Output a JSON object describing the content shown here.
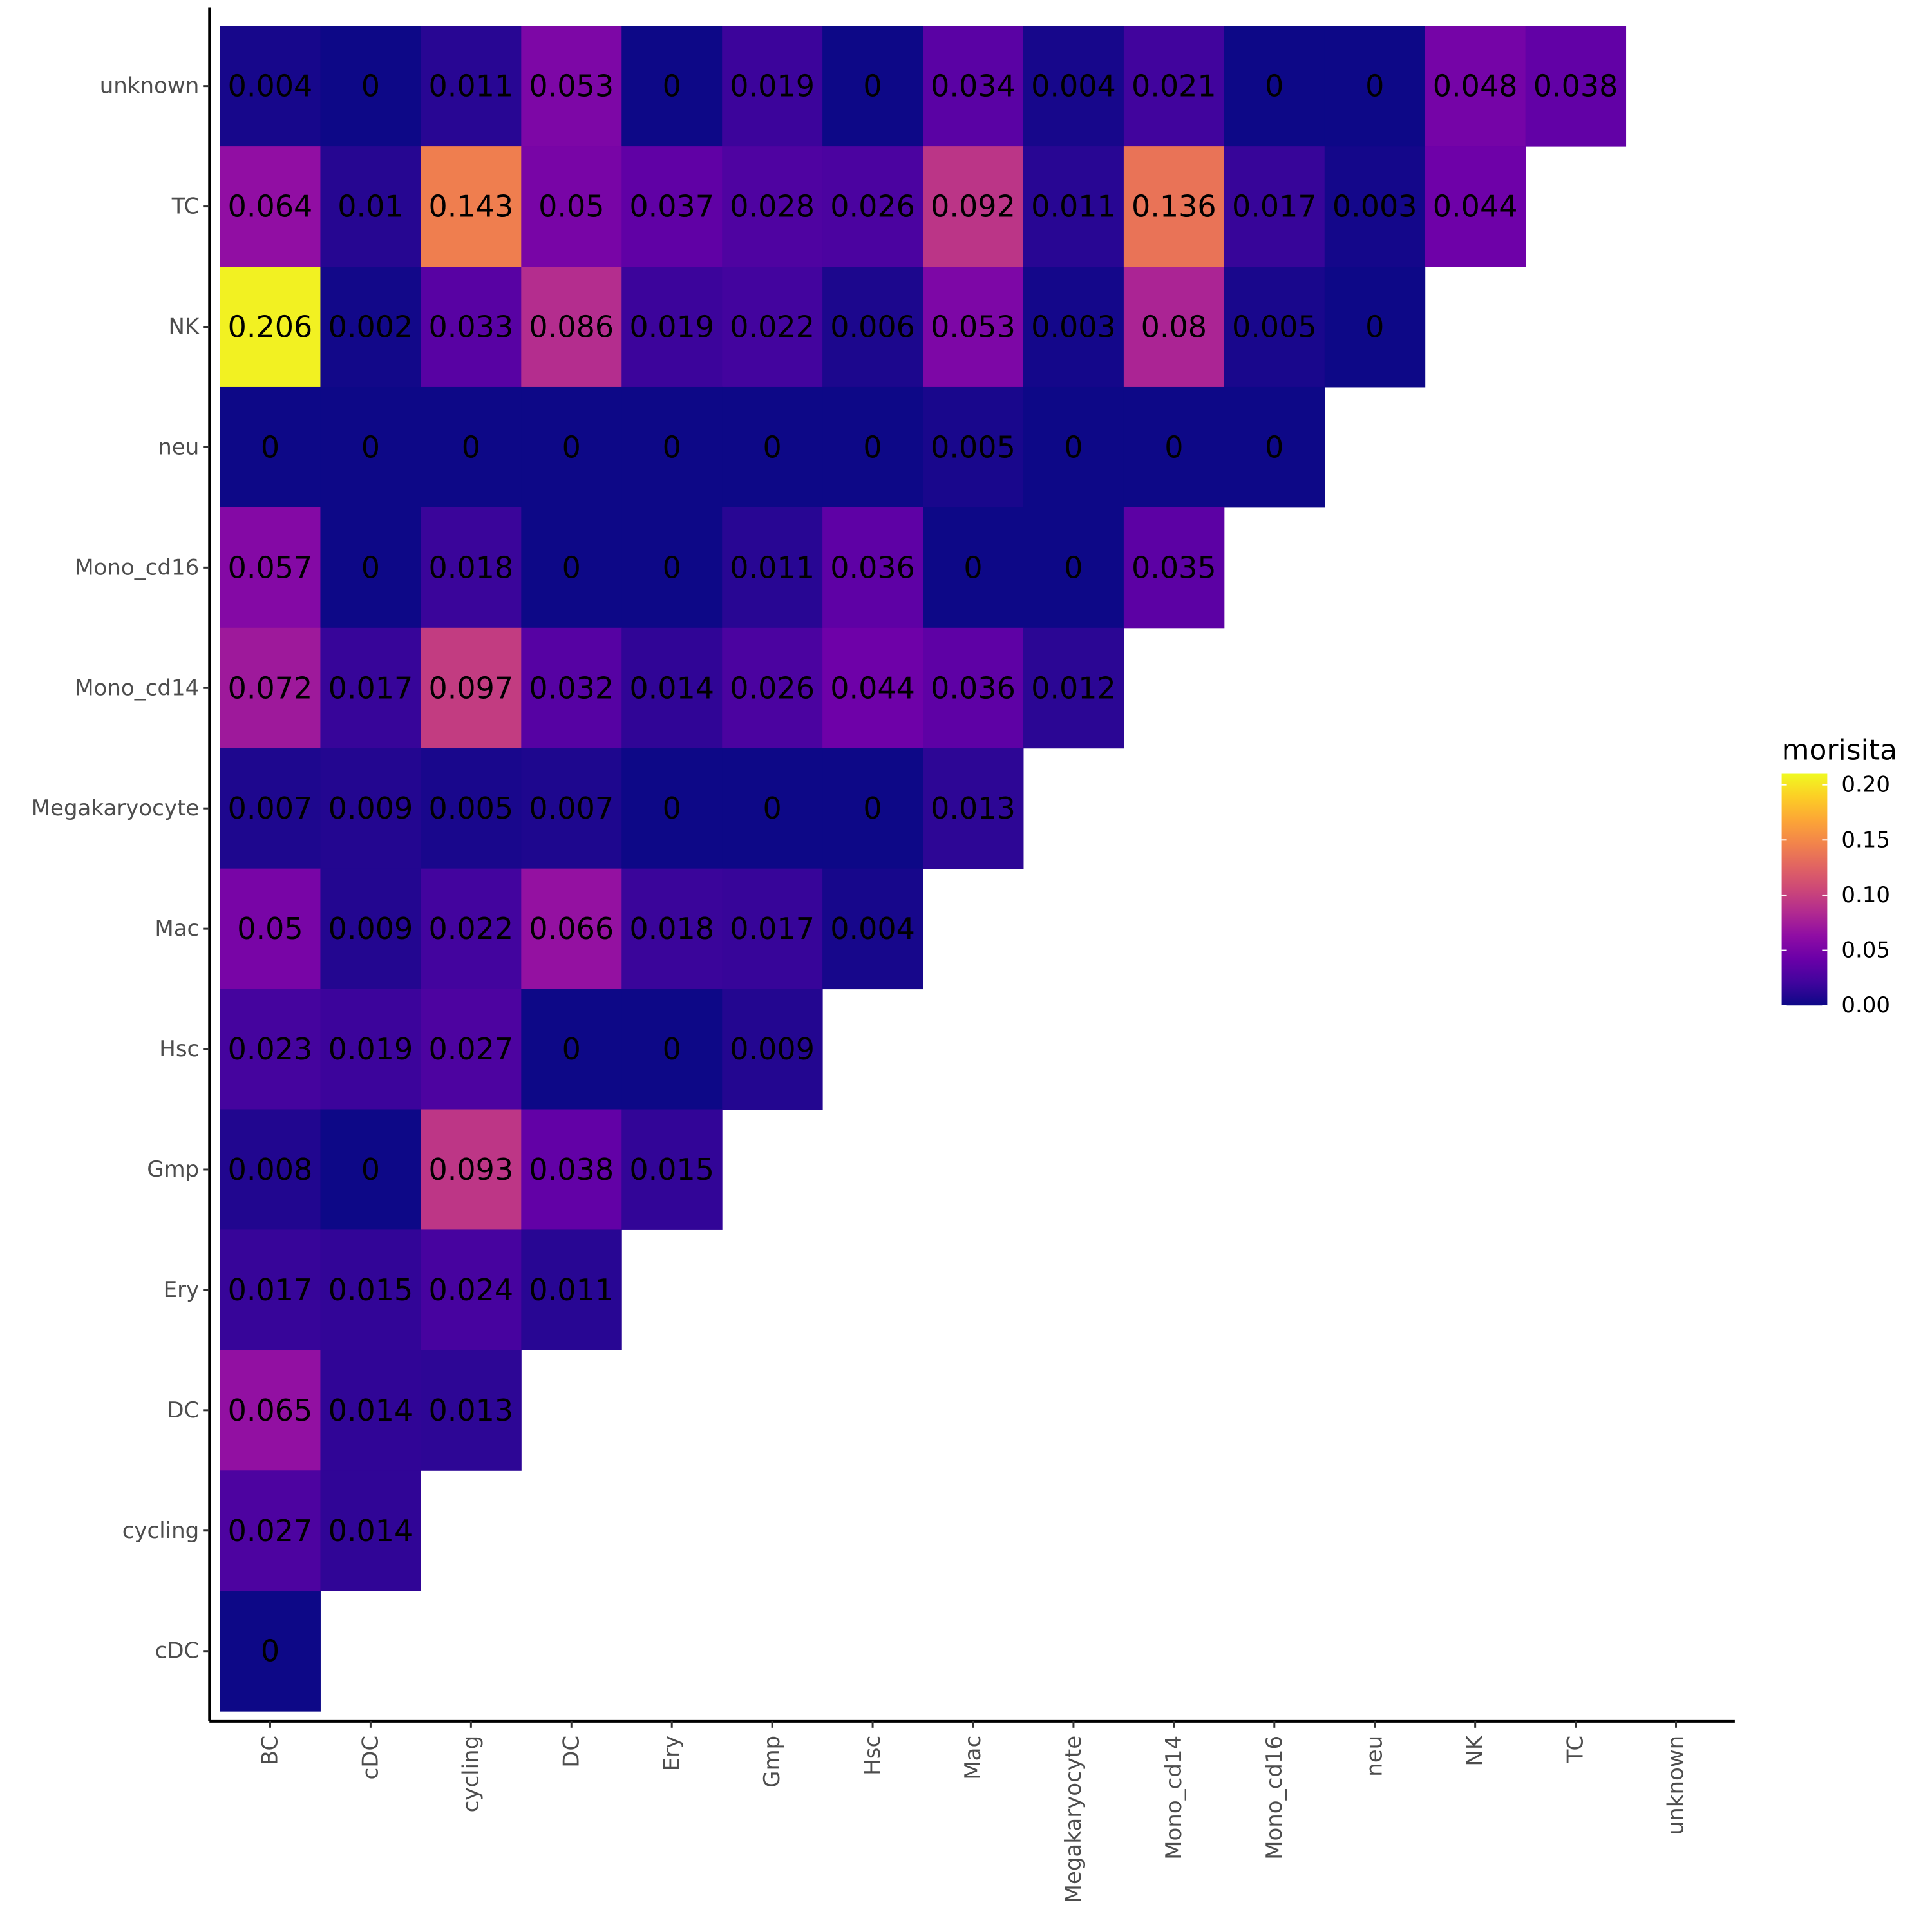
{
  "chart_data": {
    "type": "heatmap",
    "title": "",
    "xlabel": "",
    "ylabel": "",
    "x_categories": [
      "BC",
      "cDC",
      "cycling",
      "DC",
      "Ery",
      "Gmp",
      "Hsc",
      "Mac",
      "Megakaryocyte",
      "Mono_cd14",
      "Mono_cd16",
      "neu",
      "NK",
      "TC",
      "unknown"
    ],
    "y_categories": [
      "cDC",
      "cycling",
      "DC",
      "Ery",
      "Gmp",
      "Hsc",
      "Mac",
      "Megakaryocyte",
      "Mono_cd14",
      "Mono_cd16",
      "neu",
      "NK",
      "TC",
      "unknown"
    ],
    "rows": [
      {
        "y": "unknown",
        "labels": [
          "0.004",
          "0",
          "0.011",
          "0.053",
          "0",
          "0.019",
          "0",
          "0.034",
          "0.004",
          "0.021",
          "0",
          "0",
          "0.048",
          "0.038"
        ]
      },
      {
        "y": "TC",
        "labels": [
          "0.064",
          "0.01",
          "0.143",
          "0.05",
          "0.037",
          "0.028",
          "0.026",
          "0.092",
          "0.011",
          "0.136",
          "0.017",
          "0.003",
          "0.044"
        ]
      },
      {
        "y": "NK",
        "labels": [
          "0.206",
          "0.002",
          "0.033",
          "0.086",
          "0.019",
          "0.022",
          "0.006",
          "0.053",
          "0.003",
          "0.08",
          "0.005",
          "0"
        ]
      },
      {
        "y": "neu",
        "labels": [
          "0",
          "0",
          "0",
          "0",
          "0",
          "0",
          "0",
          "0.005",
          "0",
          "0",
          "0"
        ]
      },
      {
        "y": "Mono_cd16",
        "labels": [
          "0.057",
          "0",
          "0.018",
          "0",
          "0",
          "0.011",
          "0.036",
          "0",
          "0",
          "0.035"
        ]
      },
      {
        "y": "Mono_cd14",
        "labels": [
          "0.072",
          "0.017",
          "0.097",
          "0.032",
          "0.014",
          "0.026",
          "0.044",
          "0.036",
          "0.012"
        ]
      },
      {
        "y": "Megakaryocyte",
        "labels": [
          "0.007",
          "0.009",
          "0.005",
          "0.007",
          "0",
          "0",
          "0",
          "0.013"
        ]
      },
      {
        "y": "Mac",
        "labels": [
          "0.05",
          "0.009",
          "0.022",
          "0.066",
          "0.018",
          "0.017",
          "0.004"
        ]
      },
      {
        "y": "Hsc",
        "labels": [
          "0.023",
          "0.019",
          "0.027",
          "0",
          "0",
          "0.009"
        ]
      },
      {
        "y": "Gmp",
        "labels": [
          "0.008",
          "0",
          "0.093",
          "0.038",
          "0.015"
        ]
      },
      {
        "y": "Ery",
        "labels": [
          "0.017",
          "0.015",
          "0.024",
          "0.011"
        ]
      },
      {
        "y": "DC",
        "labels": [
          "0.065",
          "0.014",
          "0.013"
        ]
      },
      {
        "y": "cycling",
        "labels": [
          "0.027",
          "0.014"
        ]
      },
      {
        "y": "cDC",
        "labels": [
          "0"
        ]
      }
    ],
    "legend": {
      "title": "morisita",
      "placement": "right",
      "range": [
        0,
        0.21
      ],
      "breaks": [
        0,
        0.05,
        0.1,
        0.15,
        0.2
      ],
      "break_labels": [
        "0.00",
        "0.05",
        "0.10",
        "0.15",
        "0.20"
      ],
      "colormap": "plasma"
    },
    "colors": {
      "axis": "#000000",
      "tick_text": "#4d4d4d",
      "plasma": [
        "#0d0887",
        "#41049d",
        "#6a00a8",
        "#8f0da4",
        "#b12a90",
        "#cc4778",
        "#e16462",
        "#f2844b",
        "#fca636",
        "#fcce25",
        "#f0f921"
      ]
    }
  }
}
